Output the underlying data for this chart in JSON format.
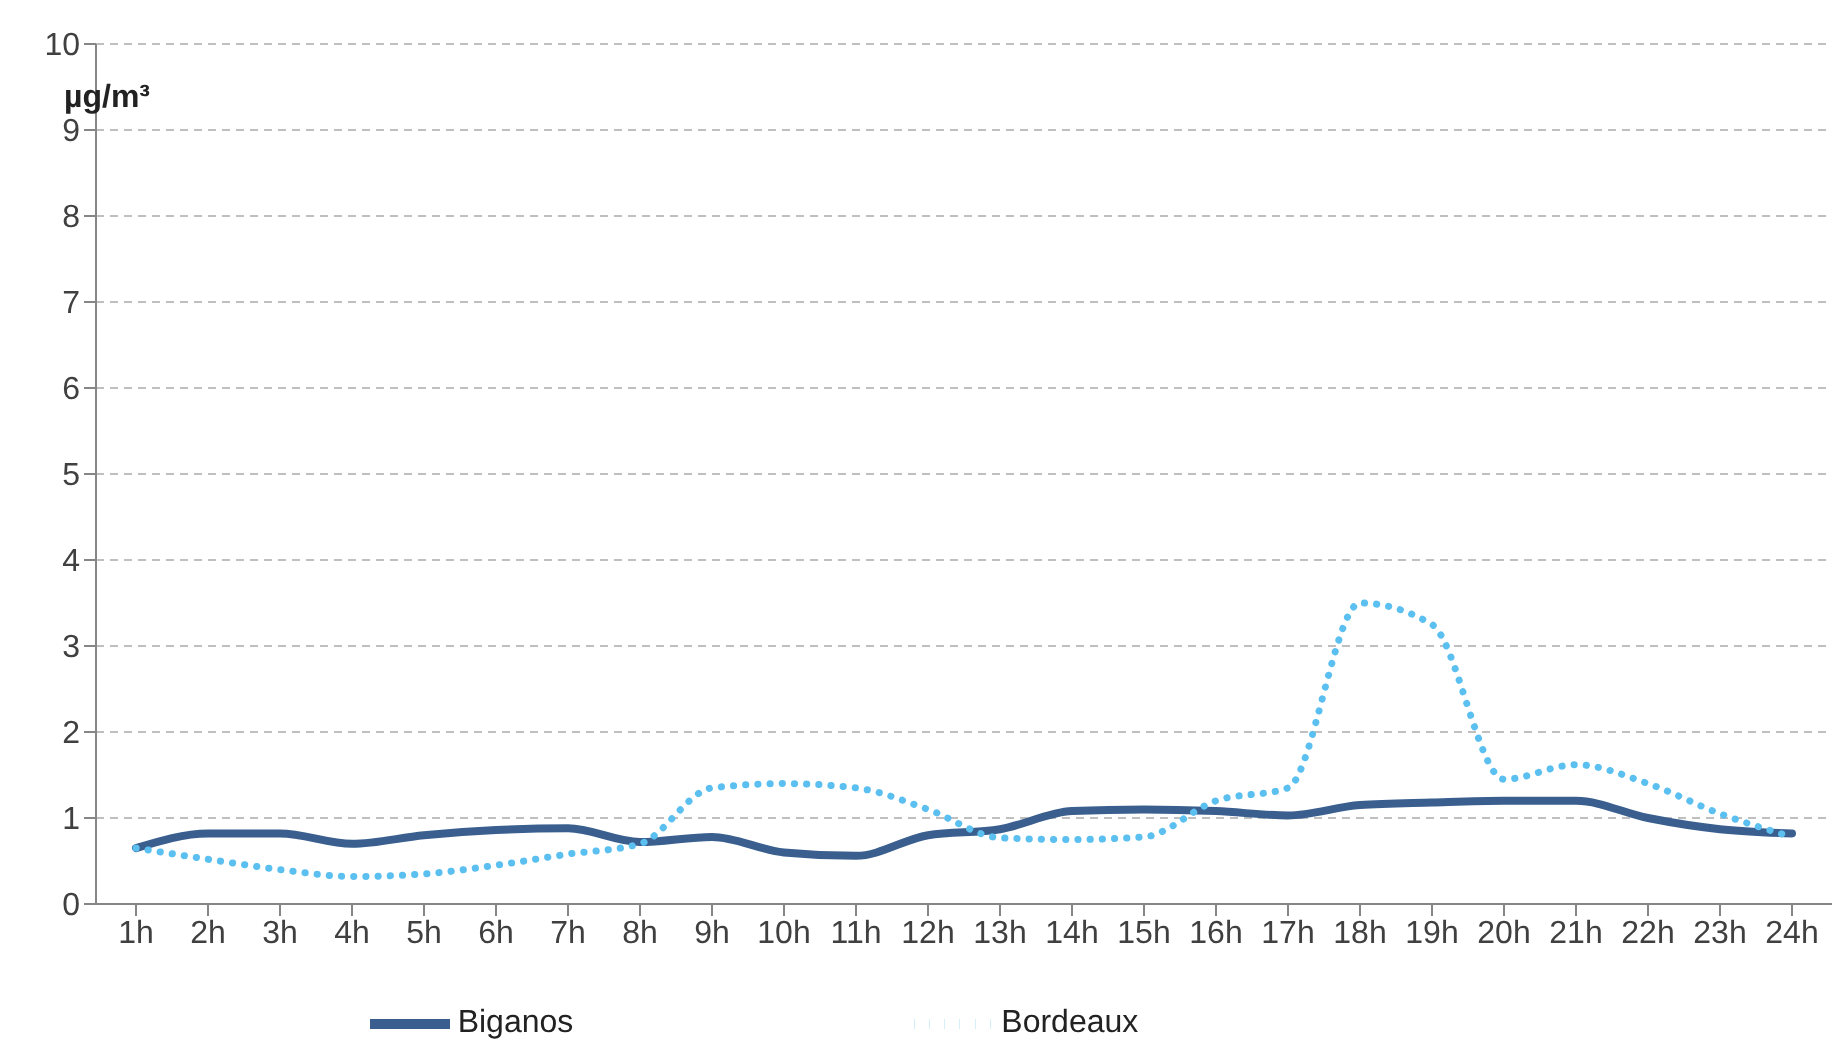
{
  "chart_data": {
    "type": "line",
    "ylabel": "µg/m³",
    "categories": [
      "1h",
      "2h",
      "3h",
      "4h",
      "5h",
      "6h",
      "7h",
      "8h",
      "9h",
      "10h",
      "11h",
      "12h",
      "13h",
      "14h",
      "15h",
      "16h",
      "17h",
      "18h",
      "19h",
      "20h",
      "21h",
      "22h",
      "23h",
      "24h"
    ],
    "series": [
      {
        "name": "Biganos",
        "color": "#3a5f8f",
        "line_style": "solid",
        "values": [
          0.65,
          0.82,
          0.82,
          0.7,
          0.8,
          0.86,
          0.88,
          0.72,
          0.78,
          0.6,
          0.56,
          0.8,
          0.87,
          1.08,
          1.1,
          1.08,
          1.03,
          1.15,
          1.18,
          1.2,
          1.2,
          1.0,
          0.87,
          0.82
        ]
      },
      {
        "name": "Bordeaux",
        "color": "#5bc0f0",
        "line_style": "dotted",
        "values": [
          0.65,
          0.52,
          0.4,
          0.32,
          0.35,
          0.45,
          0.58,
          0.7,
          1.35,
          1.4,
          1.35,
          1.1,
          0.77,
          0.75,
          0.78,
          1.2,
          1.35,
          3.5,
          3.25,
          1.45,
          1.62,
          1.4,
          1.05,
          0.78
        ]
      }
    ],
    "ylim": [
      0,
      10
    ],
    "yticks": [
      0,
      1,
      2,
      3,
      4,
      5,
      6,
      7,
      8,
      9,
      10
    ],
    "grid": "y",
    "legend": "bottom",
    "marker": "none"
  }
}
